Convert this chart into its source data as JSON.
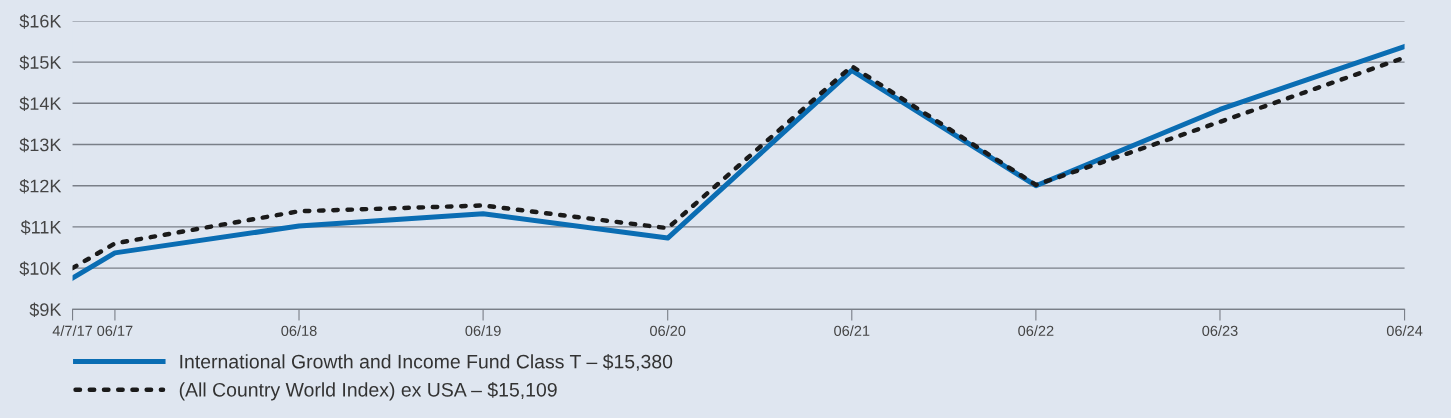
{
  "chart_data": {
    "type": "line",
    "x": [
      "2017-04-07",
      "2017-06-30",
      "2018-06-30",
      "2019-06-30",
      "2020-06-30",
      "2021-06-30",
      "2022-06-30",
      "2023-06-30",
      "2024-06-30"
    ],
    "series": [
      {
        "name": "International Growth and Income Fund Class T – $15,380",
        "color": "#0a6db3",
        "line_style": "solid",
        "values": [
          9.76,
          10.37,
          11.02,
          11.32,
          10.73,
          14.8,
          12.0,
          13.85,
          15.38
        ]
      },
      {
        "name": "(All Country World Index) ex USA – $15,109",
        "color": "#1a1a1a",
        "line_style": "dotted",
        "values": [
          10.0,
          10.6,
          11.38,
          11.52,
          10.97,
          14.9,
          12.02,
          13.55,
          15.11
        ]
      }
    ],
    "xlim": [
      "2017-04-07",
      "2024-06-30"
    ],
    "xticks": [
      {
        "value": "2017-04-07",
        "label": "4/7/17"
      },
      {
        "value": "2017-06-30",
        "label": "06/17"
      },
      {
        "value": "2018-06-30",
        "label": "06/18"
      },
      {
        "value": "2019-06-30",
        "label": "06/19"
      },
      {
        "value": "2020-06-30",
        "label": "06/20"
      },
      {
        "value": "2021-06-30",
        "label": "06/21"
      },
      {
        "value": "2022-06-30",
        "label": "06/22"
      },
      {
        "value": "2023-06-30",
        "label": "06/23"
      },
      {
        "value": "2024-06-30",
        "label": "06/24"
      }
    ],
    "ylim": [
      9,
      16
    ],
    "yticks": [
      {
        "value": 9,
        "label": "$9K"
      },
      {
        "value": 10,
        "label": "$10K"
      },
      {
        "value": 11,
        "label": "$11K"
      },
      {
        "value": 12,
        "label": "$12K"
      },
      {
        "value": 13,
        "label": "$13K"
      },
      {
        "value": 14,
        "label": "$14K"
      },
      {
        "value": 15,
        "label": "$15K"
      },
      {
        "value": 16,
        "label": "$16K"
      }
    ],
    "grid": "y",
    "legend": "bottom left",
    "marker": "none"
  }
}
